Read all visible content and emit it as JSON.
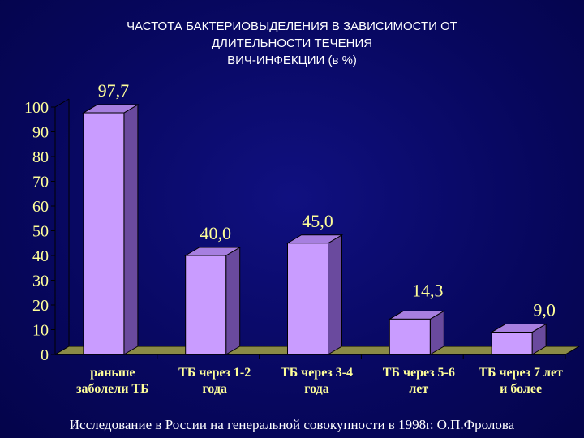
{
  "title_lines": [
    "ЧАСТОТА БАКТЕРИОВЫДЕЛЕНИЯ В ЗАВИСИМОСТИ ОТ",
    "ДЛИТЕЛЬНОСТИ ТЕЧЕНИЯ",
    "ВИЧ-ИНФЕКЦИИ (в %)"
  ],
  "footer": "Исследование в России на генеральной совокупности в 1998г. О.П.Фролова",
  "colors": {
    "bar_front": "#c99cff",
    "bar_side": "#6a4a9e",
    "bar_top": "#a77fe0",
    "axis_text": "#ffff99",
    "floor": "#8a8a46"
  },
  "chart_data": {
    "type": "bar",
    "categories": [
      [
        "раньше",
        "заболели ТБ"
      ],
      [
        "ТБ через 1-2",
        "года"
      ],
      [
        "ТБ через 3-4",
        "года"
      ],
      [
        "ТБ через 5-6",
        "лет"
      ],
      [
        "ТБ через 7 лет",
        "и более"
      ]
    ],
    "values": [
      97.7,
      40.0,
      45.0,
      14.3,
      9.0
    ],
    "value_labels": [
      "97,7",
      "40,0",
      "45,0",
      "14,3",
      "9,0"
    ],
    "ylim": [
      0,
      100
    ],
    "yticks": [
      0,
      10,
      20,
      30,
      40,
      50,
      60,
      70,
      80,
      90,
      100
    ],
    "grid": false,
    "three_d": true
  }
}
